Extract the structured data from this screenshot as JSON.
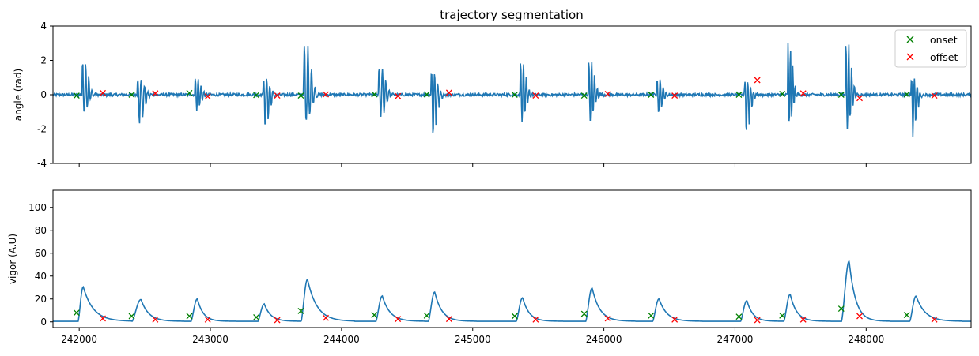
{
  "chart_data": [
    {
      "type": "line",
      "title": "trajectory segmentation",
      "ylabel": "angle (rad)",
      "xlim": [
        241800,
        248800
      ],
      "ylim": [
        -4,
        4
      ],
      "yticks": [
        -4,
        -2,
        0,
        2,
        4
      ],
      "xticks": [
        242000,
        243000,
        244000,
        245000,
        246000,
        247000,
        248000
      ],
      "show_x_tick_labels": false,
      "line_color": "#1f77b4",
      "bouts": [
        {
          "start": 242020,
          "end": 242150,
          "peak": 2.05,
          "trough": -1.0
        },
        {
          "start": 242440,
          "end": 242580,
          "peak": 1.0,
          "trough": -1.75
        },
        {
          "start": 242880,
          "end": 243000,
          "peak": 1.0,
          "trough": -0.9
        },
        {
          "start": 243400,
          "end": 243530,
          "peak": 1.0,
          "trough": -2.0
        },
        {
          "start": 243710,
          "end": 243860,
          "peak": 3.05,
          "trough": -1.6
        },
        {
          "start": 244280,
          "end": 244420,
          "peak": 1.7,
          "trough": -1.35
        },
        {
          "start": 244680,
          "end": 244810,
          "peak": 1.4,
          "trough": -2.45
        },
        {
          "start": 245360,
          "end": 245480,
          "peak": 2.05,
          "trough": -1.65
        },
        {
          "start": 245880,
          "end": 246000,
          "peak": 2.2,
          "trough": -1.55
        },
        {
          "start": 246400,
          "end": 246530,
          "peak": 1.0,
          "trough": -1.1
        },
        {
          "start": 247070,
          "end": 247190,
          "peak": 0.8,
          "trough": -2.35
        },
        {
          "start": 247400,
          "end": 247500,
          "peak": 3.25,
          "trough": -1.85
        },
        {
          "start": 247840,
          "end": 247960,
          "peak": 3.25,
          "trough": -1.95
        },
        {
          "start": 248340,
          "end": 248460,
          "peak": 1.0,
          "trough": -2.4
        }
      ],
      "onset": {
        "label": "onset",
        "color": "#008000",
        "x": [
          241980,
          242400,
          242840,
          243350,
          243690,
          244250,
          244650,
          245320,
          245850,
          246360,
          247030,
          247360,
          247810,
          248310
        ],
        "y": [
          -0.05,
          0.0,
          0.1,
          -0.02,
          -0.05,
          0.02,
          0.02,
          0.0,
          -0.05,
          0.0,
          0.0,
          0.05,
          0.0,
          0.02
        ]
      },
      "offset": {
        "label": "offset",
        "color": "#ff0000",
        "x": [
          242180,
          242580,
          242980,
          243510,
          243880,
          244430,
          244820,
          245480,
          246030,
          246540,
          247170,
          247520,
          247950,
          248520
        ],
        "y": [
          0.1,
          0.08,
          -0.1,
          -0.05,
          0.02,
          -0.08,
          0.12,
          -0.05,
          0.05,
          -0.05,
          0.85,
          0.08,
          -0.2,
          -0.05
        ]
      },
      "legend": {
        "location": "top-right",
        "entries": [
          "onset",
          "offset"
        ]
      }
    },
    {
      "type": "line",
      "ylabel": "vigor (A.U)",
      "xlim": [
        241800,
        248800
      ],
      "ylim": [
        -5,
        115
      ],
      "yticks": [
        0,
        20,
        40,
        60,
        80,
        100
      ],
      "xticks": [
        242000,
        243000,
        244000,
        245000,
        246000,
        247000,
        248000
      ],
      "xtick_labels": [
        "242000",
        "243000",
        "244000",
        "245000",
        "246000",
        "247000",
        "248000"
      ],
      "line_color": "#1f77b4",
      "peaks": [
        {
          "start": 241990,
          "x": 242030,
          "y": 30.5,
          "end": 242200
        },
        {
          "start": 242400,
          "x": 242470,
          "y": 19.5,
          "end": 242600
        },
        {
          "start": 242850,
          "x": 242900,
          "y": 20.0,
          "end": 243000
        },
        {
          "start": 243360,
          "x": 243410,
          "y": 15.5,
          "end": 243520
        },
        {
          "start": 243690,
          "x": 243740,
          "y": 37.0,
          "end": 243900
        },
        {
          "start": 244260,
          "x": 244310,
          "y": 22.5,
          "end": 244440
        },
        {
          "start": 244660,
          "x": 244710,
          "y": 26.0,
          "end": 244830
        },
        {
          "start": 245330,
          "x": 245380,
          "y": 21.0,
          "end": 245490
        },
        {
          "start": 245860,
          "x": 245910,
          "y": 29.5,
          "end": 246040
        },
        {
          "start": 246370,
          "x": 246420,
          "y": 20.0,
          "end": 246550
        },
        {
          "start": 247040,
          "x": 247090,
          "y": 18.5,
          "end": 247190
        },
        {
          "start": 247370,
          "x": 247420,
          "y": 24.0,
          "end": 247530
        },
        {
          "start": 247810,
          "x": 247870,
          "y": 53.0,
          "end": 247980
        },
        {
          "start": 248330,
          "x": 248380,
          "y": 22.5,
          "end": 248530
        }
      ],
      "onset": {
        "label": "onset",
        "color": "#008000",
        "x": [
          241980,
          242400,
          242840,
          243350,
          243690,
          244250,
          244650,
          245320,
          245850,
          246360,
          247030,
          247360,
          247810,
          248310
        ],
        "y": [
          8.0,
          5.0,
          5.0,
          4.0,
          9.5,
          6.0,
          5.5,
          5.0,
          7.0,
          5.5,
          4.5,
          5.5,
          11.5,
          6.0
        ]
      },
      "offset": {
        "label": "offset",
        "color": "#ff0000",
        "x": [
          242180,
          242580,
          242980,
          243510,
          243880,
          244430,
          244820,
          245480,
          246030,
          246540,
          247170,
          247520,
          247950,
          248520
        ],
        "y": [
          3.0,
          2.0,
          2.0,
          1.5,
          3.5,
          2.5,
          2.5,
          2.0,
          3.0,
          2.0,
          1.5,
          2.0,
          5.0,
          2.0
        ]
      }
    }
  ]
}
